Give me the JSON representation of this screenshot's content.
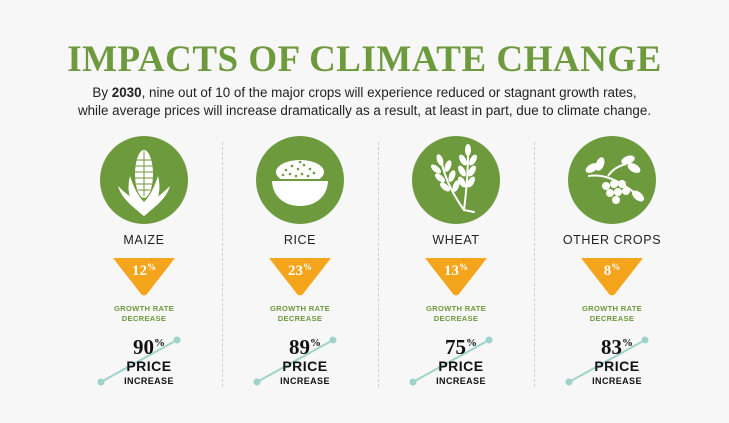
{
  "header": {
    "title": "IMPACTS OF CLIMATE CHANGE",
    "subtitle_prefix": "By ",
    "subtitle_year": "2030",
    "subtitle_line1_rest": ", nine out of 10 of the major crops will experience reduced or stagnant growth rates,",
    "subtitle_line2": "while average prices will increase dramatically as a result, at least in part, due to climate change."
  },
  "labels": {
    "growth_rate_line1": "GROWTH RATE",
    "growth_rate_line2": "DECREASE",
    "price": "PRICE",
    "increase": "INCREASE",
    "percent_sign": "%"
  },
  "colors": {
    "green": "#6e9a3e",
    "orange": "#f5a51c",
    "teal_line": "#9fd3c9"
  },
  "crops": [
    {
      "name": "MAIZE",
      "icon": "maize-icon",
      "growth_decrease": "12",
      "price_increase": "90"
    },
    {
      "name": "RICE",
      "icon": "rice-bowl-icon",
      "growth_decrease": "23",
      "price_increase": "89"
    },
    {
      "name": "WHEAT",
      "icon": "wheat-icon",
      "growth_decrease": "13",
      "price_increase": "75"
    },
    {
      "name": "OTHER CROPS",
      "icon": "other-crops-icon",
      "growth_decrease": "8",
      "price_increase": "83"
    }
  ]
}
